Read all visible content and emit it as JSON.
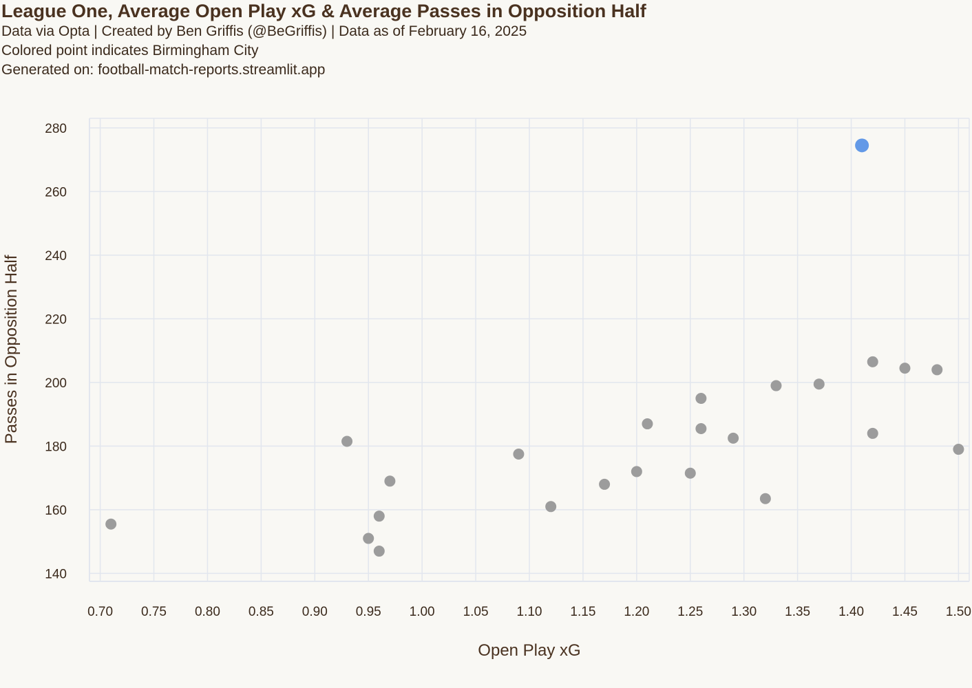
{
  "header": {
    "title": "League One, Average Open Play xG & Average Passes in Opposition Half",
    "subtitle_1": "Data via Opta | Created by Ben Griffis (@BeGriffis) | Data as of February 16, 2025",
    "subtitle_2": "Colored point indicates Birmingham City",
    "subtitle_3": "Generated on: football-match-reports.streamlit.app"
  },
  "colors": {
    "background": "#f9f8f4",
    "grid": "#e2e6ee",
    "point": "#9c9c9c",
    "highlight": "#5b93e6",
    "text": "#3b2a1c"
  },
  "chart_data": {
    "type": "scatter",
    "title": "League One, Average Open Play xG & Average Passes in Opposition Half",
    "xlabel": "Open Play xG",
    "ylabel": "Passes in Opposition Half",
    "xlim": [
      0.69,
      1.51
    ],
    "ylim": [
      137.5,
      283
    ],
    "x_ticks": [
      "0.70",
      "0.75",
      "0.80",
      "0.85",
      "0.90",
      "0.95",
      "1.00",
      "1.05",
      "1.10",
      "1.15",
      "1.20",
      "1.25",
      "1.30",
      "1.35",
      "1.40",
      "1.45",
      "1.50"
    ],
    "y_ticks": [
      "140",
      "160",
      "180",
      "200",
      "220",
      "240",
      "260",
      "280"
    ],
    "grid": true,
    "highlight_note": "Birmingham City",
    "points": [
      {
        "x": 0.71,
        "y": 155.5,
        "highlight": false
      },
      {
        "x": 0.93,
        "y": 181.5,
        "highlight": false
      },
      {
        "x": 0.95,
        "y": 151.0,
        "highlight": false
      },
      {
        "x": 0.96,
        "y": 147.0,
        "highlight": false
      },
      {
        "x": 0.96,
        "y": 158.0,
        "highlight": false
      },
      {
        "x": 0.97,
        "y": 169.0,
        "highlight": false
      },
      {
        "x": 1.09,
        "y": 177.5,
        "highlight": false
      },
      {
        "x": 1.12,
        "y": 161.0,
        "highlight": false
      },
      {
        "x": 1.17,
        "y": 168.0,
        "highlight": false
      },
      {
        "x": 1.2,
        "y": 172.0,
        "highlight": false
      },
      {
        "x": 1.21,
        "y": 187.0,
        "highlight": false
      },
      {
        "x": 1.25,
        "y": 171.5,
        "highlight": false
      },
      {
        "x": 1.26,
        "y": 185.5,
        "highlight": false
      },
      {
        "x": 1.26,
        "y": 195.0,
        "highlight": false
      },
      {
        "x": 1.29,
        "y": 182.5,
        "highlight": false
      },
      {
        "x": 1.32,
        "y": 163.5,
        "highlight": false
      },
      {
        "x": 1.33,
        "y": 199.0,
        "highlight": false
      },
      {
        "x": 1.37,
        "y": 199.5,
        "highlight": false
      },
      {
        "x": 1.42,
        "y": 184.0,
        "highlight": false
      },
      {
        "x": 1.42,
        "y": 206.5,
        "highlight": false
      },
      {
        "x": 1.45,
        "y": 204.5,
        "highlight": false
      },
      {
        "x": 1.48,
        "y": 204.0,
        "highlight": false
      },
      {
        "x": 1.5,
        "y": 179.0,
        "highlight": false
      },
      {
        "x": 1.41,
        "y": 274.5,
        "highlight": true
      }
    ]
  }
}
